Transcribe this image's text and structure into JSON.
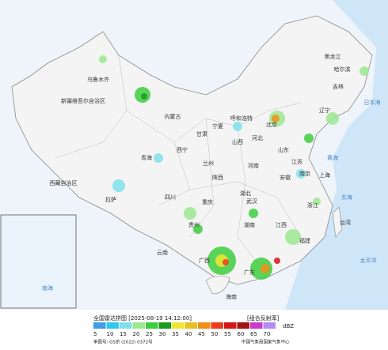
{
  "header": {
    "title": "全国雷达拼图 [2025-08-19 14:12:00]",
    "product": "[组合反射率]"
  },
  "legend": {
    "unit": "dBZ",
    "values": [
      5,
      10,
      15,
      20,
      25,
      30,
      35,
      40,
      45,
      50,
      55,
      60,
      65,
      70
    ],
    "colors": [
      "#3e9ee6",
      "#30c8ef",
      "#7fe0ea",
      "#9ce890",
      "#3dcc3d",
      "#1a9a1a",
      "#f0e632",
      "#e8c020",
      "#f09018",
      "#f03a1e",
      "#d41616",
      "#a01414",
      "#c83cc8",
      "#b48cf0"
    ]
  },
  "footer": {
    "approval": "审图号: GS京 (2022) 0372号",
    "agency": "中国气象局国家气象中心"
  },
  "places": [
    "新疆维吾尔自治区",
    "乌鲁木齐",
    "西藏自治区",
    "拉萨",
    "青海",
    "西宁",
    "甘肃",
    "兰州",
    "宁夏",
    "内蒙古",
    "呼和浩特",
    "黑龙江",
    "哈尔滨",
    "吉林",
    "辽宁",
    "北京",
    "河北",
    "山西",
    "山东",
    "陕西",
    "河南",
    "四川",
    "重庆",
    "湖北",
    "武汉",
    "安徽",
    "江苏",
    "南京",
    "上海",
    "浙江",
    "湖南",
    "江西",
    "贵州",
    "云南",
    "广西",
    "广东",
    "福建",
    "台湾",
    "海南"
  ],
  "seas": [
    "日本海",
    "黄海",
    "东海",
    "太平洋",
    "南海"
  ]
}
